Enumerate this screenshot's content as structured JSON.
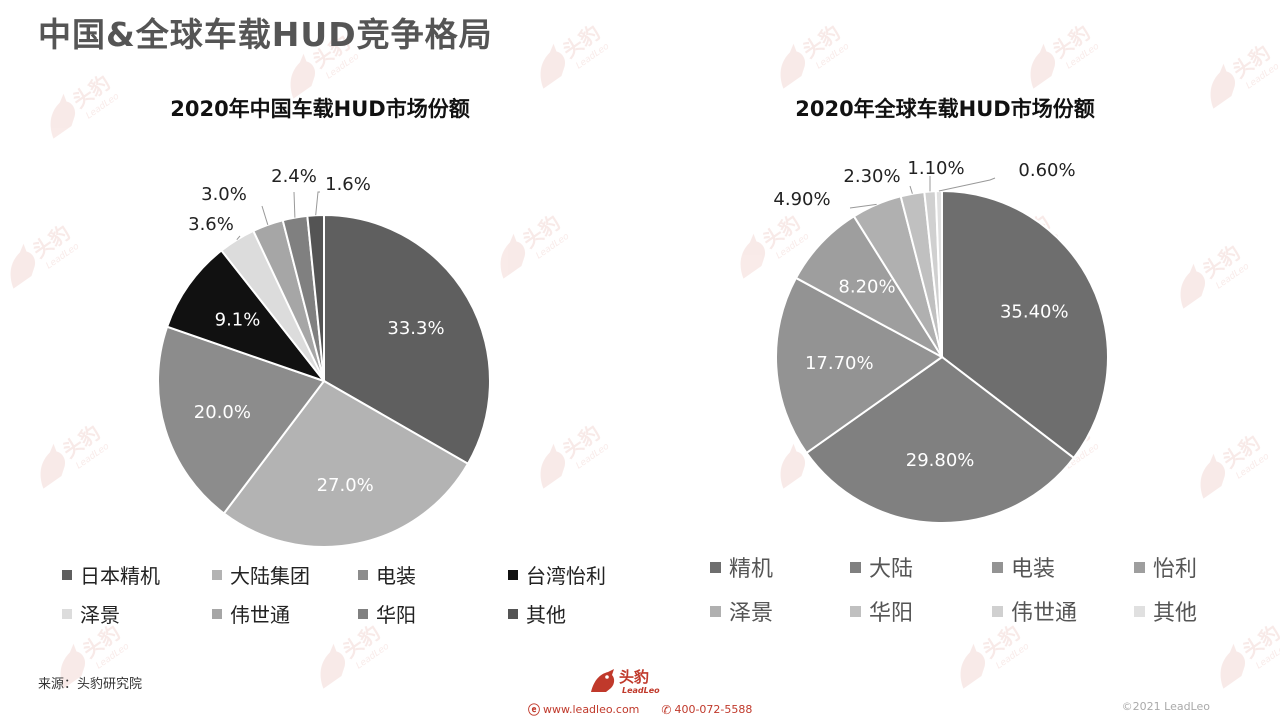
{
  "page": {
    "title": "中国&全球车载HUD竞争格局",
    "source": "来源：头豹研究院",
    "copyright": "©2021 LeadLeo",
    "footer_web": "www.leadleo.com",
    "footer_phone": "400-072-5588",
    "logo_text": "头豹",
    "logo_sub": "LeadLeo",
    "watermark_text": "头豹",
    "watermark_sub": "LeadLeo"
  },
  "chart_data": [
    {
      "type": "pie",
      "title": "2020年中国车载HUD市场份额",
      "categories": [
        "日本精机",
        "大陆集团",
        "电装",
        "台湾怡利",
        "泽景",
        "伟世通",
        "华阳",
        "其他"
      ],
      "values": [
        33.3,
        27.0,
        20.0,
        9.1,
        3.6,
        3.0,
        2.4,
        1.6
      ],
      "labels": [
        "33.3%",
        "27.0%",
        "20.0%",
        "9.1%",
        "3.6%",
        "3.0%",
        "2.4%",
        "1.6%"
      ],
      "colors": [
        "#5f5f5f",
        "#b3b3b3",
        "#8c8c8c",
        "#111111",
        "#dcdcdc",
        "#a6a6a6",
        "#808080",
        "#545454"
      ],
      "legend_order": [
        "日本精机",
        "大陆集团",
        "电装",
        "台湾怡利",
        "泽景",
        "伟世通",
        "华阳",
        "其他"
      ],
      "legend_colors": [
        "#5f5f5f",
        "#b3b3b3",
        "#8c8c8c",
        "#111111",
        "#dcdcdc",
        "#a6a6a6",
        "#808080",
        "#545454"
      ],
      "legend_position": "bottom"
    },
    {
      "type": "pie",
      "title": "2020年全球车载HUD市场份额",
      "categories": [
        "精机",
        "大陆",
        "电装",
        "怡利",
        "泽景",
        "华阳",
        "伟世通",
        "其他"
      ],
      "values": [
        35.4,
        29.8,
        17.7,
        8.2,
        4.9,
        2.3,
        1.1,
        0.6
      ],
      "labels": [
        "35.40%",
        "29.80%",
        "17.70%",
        "8.20%",
        "4.90%",
        "2.30%",
        "1.10%",
        "0.60%"
      ],
      "colors": [
        "#6e6e6e",
        "#808080",
        "#939393",
        "#9e9e9e",
        "#b0b0b0",
        "#c0c0c0",
        "#d0d0d0",
        "#e0e0e0"
      ],
      "legend_order": [
        "精机",
        "大陆",
        "电装",
        "怡利",
        "泽景",
        "华阳",
        "伟世通",
        "其他"
      ],
      "legend_colors": [
        "#6e6e6e",
        "#808080",
        "#939393",
        "#9e9e9e",
        "#b0b0b0",
        "#c0c0c0",
        "#d0d0d0",
        "#e0e0e0"
      ],
      "legend_position": "bottom"
    }
  ]
}
